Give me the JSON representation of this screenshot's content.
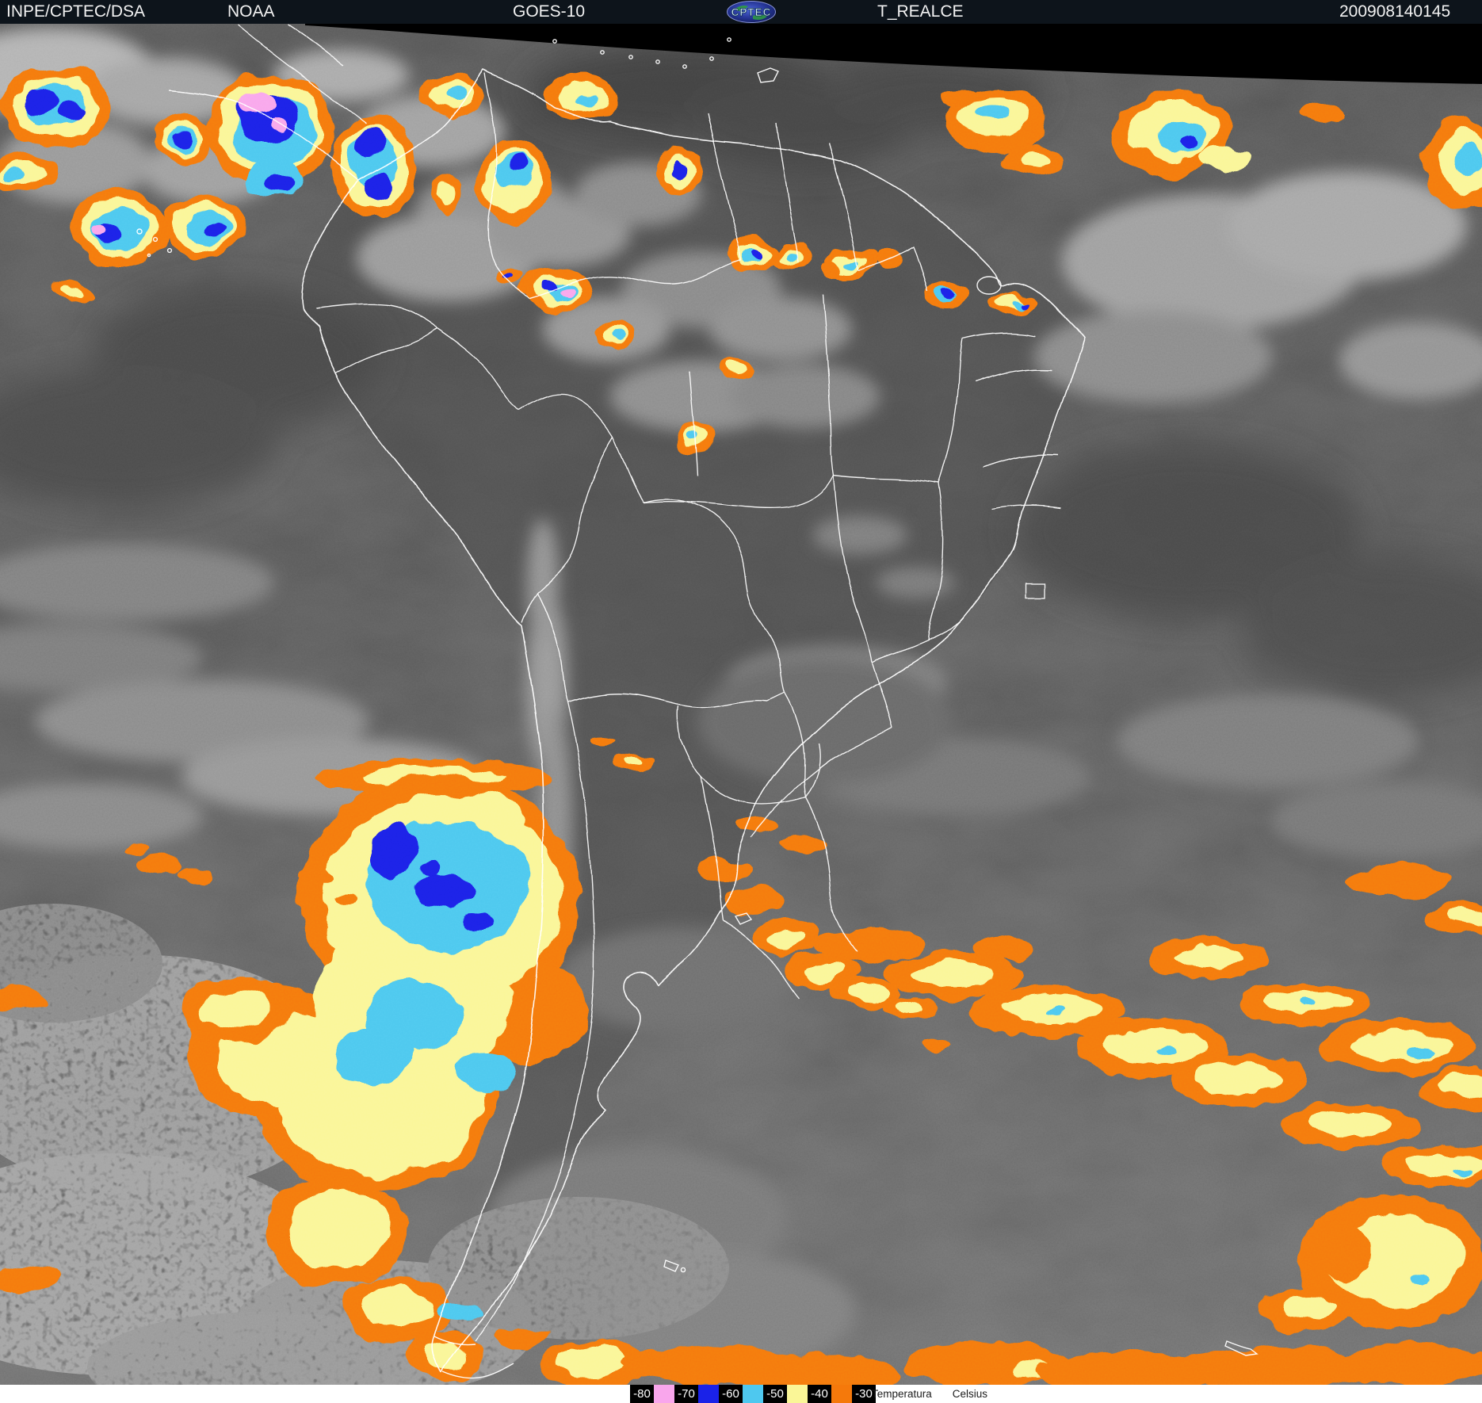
{
  "header": {
    "source": "INPE/CPTEC/DSA",
    "agency": "NOAA",
    "satellite": "GOES-10",
    "logo_text": "CPTEC",
    "product": "T_REALCE",
    "timestamp": "200908140145"
  },
  "legend": {
    "caption": [
      "Temperatura",
      "Celsius"
    ],
    "items": [
      {
        "label": "-80",
        "swatch": "#F9A6EC"
      },
      {
        "label": "-70",
        "swatch": "#1A22E8"
      },
      {
        "label": "-60",
        "swatch": "#4EC8EF"
      },
      {
        "label": "-50",
        "swatch": "#FAF697"
      },
      {
        "label": "-40",
        "swatch": "#F5790B"
      },
      {
        "label": "-30",
        "swatch": null
      }
    ]
  },
  "map": {
    "palette": {
      "orange": "#F5790B",
      "yellow": "#FAF697",
      "cyan": "#4EC8EF",
      "blue": "#1A22E8",
      "pink": "#F9A6EC",
      "border_white": "#FFFFFF"
    }
  }
}
